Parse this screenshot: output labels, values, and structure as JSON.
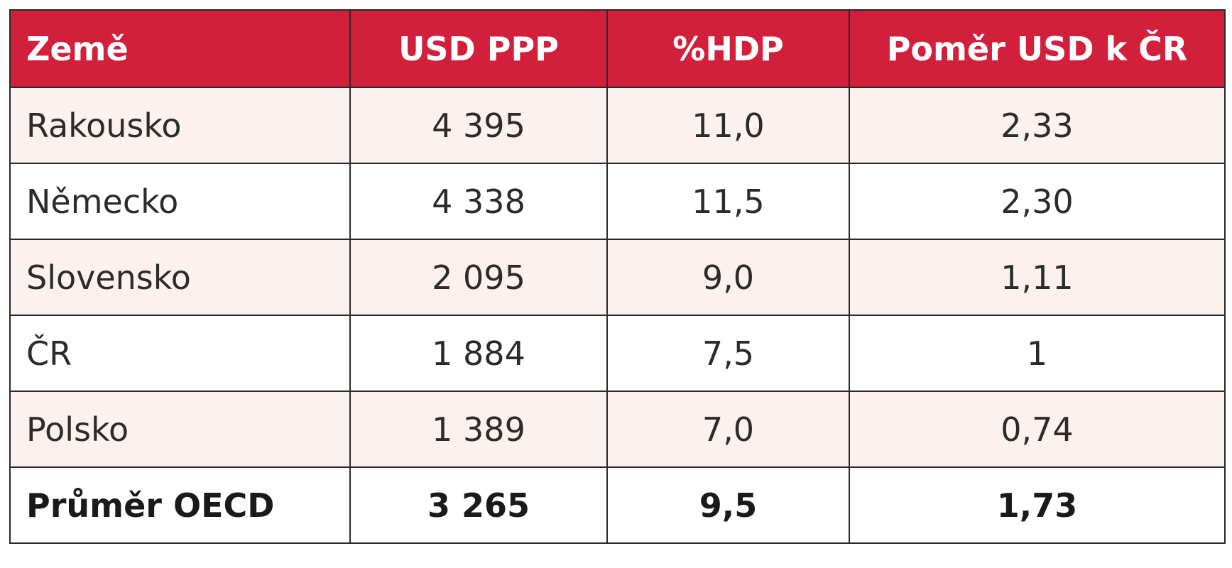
{
  "table": {
    "header": [
      "Země",
      "USD PPP",
      "%HDP",
      "Poměr USD k ČR"
    ],
    "rows": [
      [
        "Rakousko",
        "4 395",
        "11,0",
        "2,33"
      ],
      [
        "Německo",
        "4 338",
        "11,5",
        "2,30"
      ],
      [
        "Slovensko",
        "2 095",
        "9,0",
        "1,11"
      ],
      [
        "ČR",
        "1 884",
        "7,5",
        "1"
      ],
      [
        "Polsko",
        "1 389",
        "7,0",
        "0,74"
      ],
      [
        "Průměr OECD",
        "3 265",
        "9,5",
        "1,73"
      ]
    ]
  }
}
